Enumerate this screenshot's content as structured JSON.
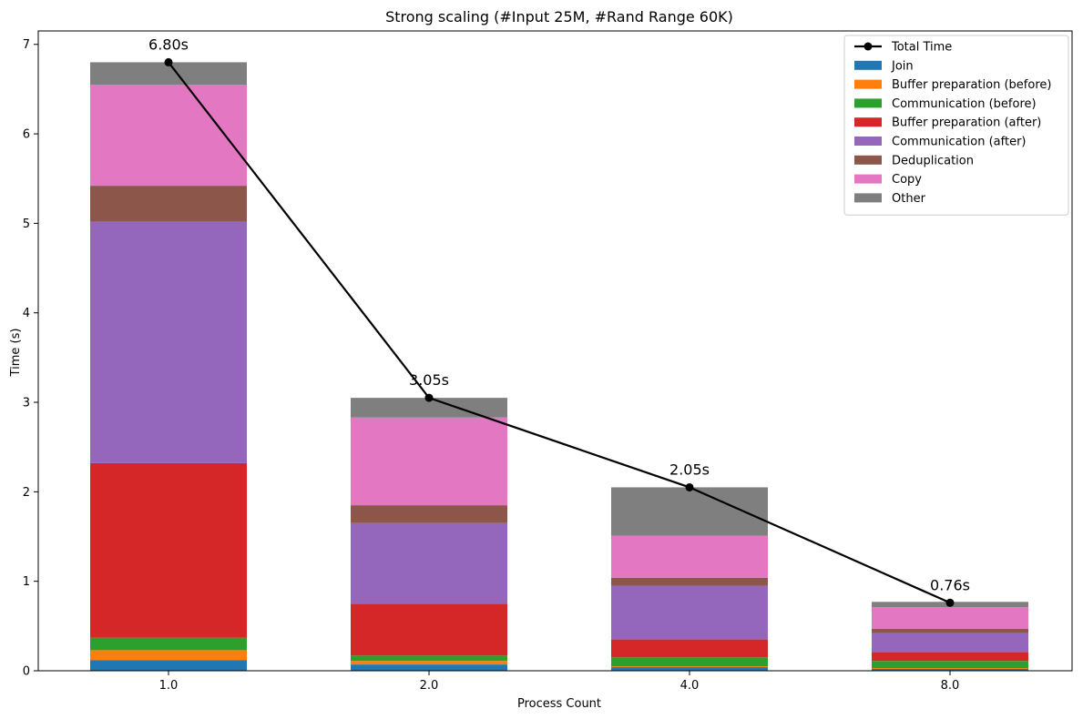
{
  "chart_data": {
    "type": "bar",
    "stacked": true,
    "title": "Strong scaling (#Input 25M, #Rand Range 60K)",
    "xlabel": "Process Count",
    "ylabel": "Time (s)",
    "categories": [
      "1.0",
      "2.0",
      "4.0",
      "8.0"
    ],
    "ylim": [
      0,
      7.15
    ],
    "yticks": [
      0,
      1,
      2,
      3,
      4,
      5,
      6,
      7
    ],
    "grid": false,
    "legend_position": "top-right",
    "series": [
      {
        "name": "Join",
        "color": "#1f77b4",
        "values": [
          0.12,
          0.07,
          0.04,
          0.02
        ]
      },
      {
        "name": "Buffer preparation (before)",
        "color": "#ff7f0e",
        "values": [
          0.11,
          0.04,
          0.01,
          0.01
        ]
      },
      {
        "name": "Communication (before)",
        "color": "#2ca02c",
        "values": [
          0.14,
          0.06,
          0.1,
          0.08
        ]
      },
      {
        "name": "Buffer preparation (after)",
        "color": "#d62728",
        "values": [
          1.95,
          0.58,
          0.2,
          0.1
        ]
      },
      {
        "name": "Communication (after)",
        "color": "#9467bd",
        "values": [
          2.7,
          0.9,
          0.6,
          0.21
        ]
      },
      {
        "name": "Deduplication",
        "color": "#8c564b",
        "values": [
          0.4,
          0.2,
          0.09,
          0.05
        ]
      },
      {
        "name": "Copy",
        "color": "#e377c2",
        "values": [
          1.13,
          0.98,
          0.47,
          0.24
        ]
      },
      {
        "name": "Other",
        "color": "#7f7f7f",
        "values": [
          0.25,
          0.22,
          0.54,
          0.06
        ]
      }
    ],
    "line": {
      "name": "Total Time",
      "color": "#000000",
      "values": [
        6.8,
        3.05,
        2.05,
        0.76
      ],
      "labels": [
        "6.80s",
        "3.05s",
        "2.05s",
        "0.76s"
      ]
    }
  }
}
